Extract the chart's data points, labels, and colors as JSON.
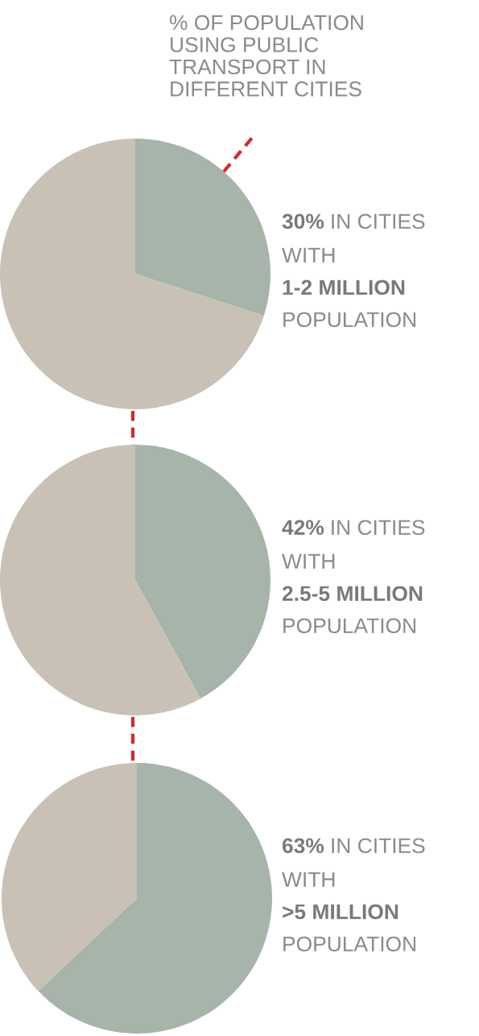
{
  "chart_data": [
    {
      "type": "pie",
      "title": "% OF POPULATION\nUSING PUBLIC\nTRANSPORT IN\nDIFFERENT CITIES",
      "categories": [
        null,
        null
      ],
      "values": [
        30,
        70
      ],
      "colors": [
        "#a6b4a9",
        "#c9c1b6"
      ],
      "annotations": [
        "30%",
        "IN CITIES",
        "WITH",
        "1-2 MILLION",
        "POPULATION"
      ]
    },
    {
      "type": "pie",
      "categories": [
        null,
        null
      ],
      "values": [
        42,
        58
      ],
      "colors": [
        "#a6b4a9",
        "#c9c1b6"
      ],
      "annotations": [
        "42%",
        "IN CITIES",
        "WITH",
        "2.5-5 MILLION",
        "POPULATION"
      ]
    },
    {
      "type": "pie",
      "categories": [
        null,
        null
      ],
      "values": [
        63,
        37
      ],
      "colors": [
        "#a6b4a9",
        "#c9c1b6"
      ],
      "annotations": [
        "63%",
        "IN CITIES",
        "WITH",
        ">5 MILLION",
        "POPULATION"
      ]
    }
  ]
}
